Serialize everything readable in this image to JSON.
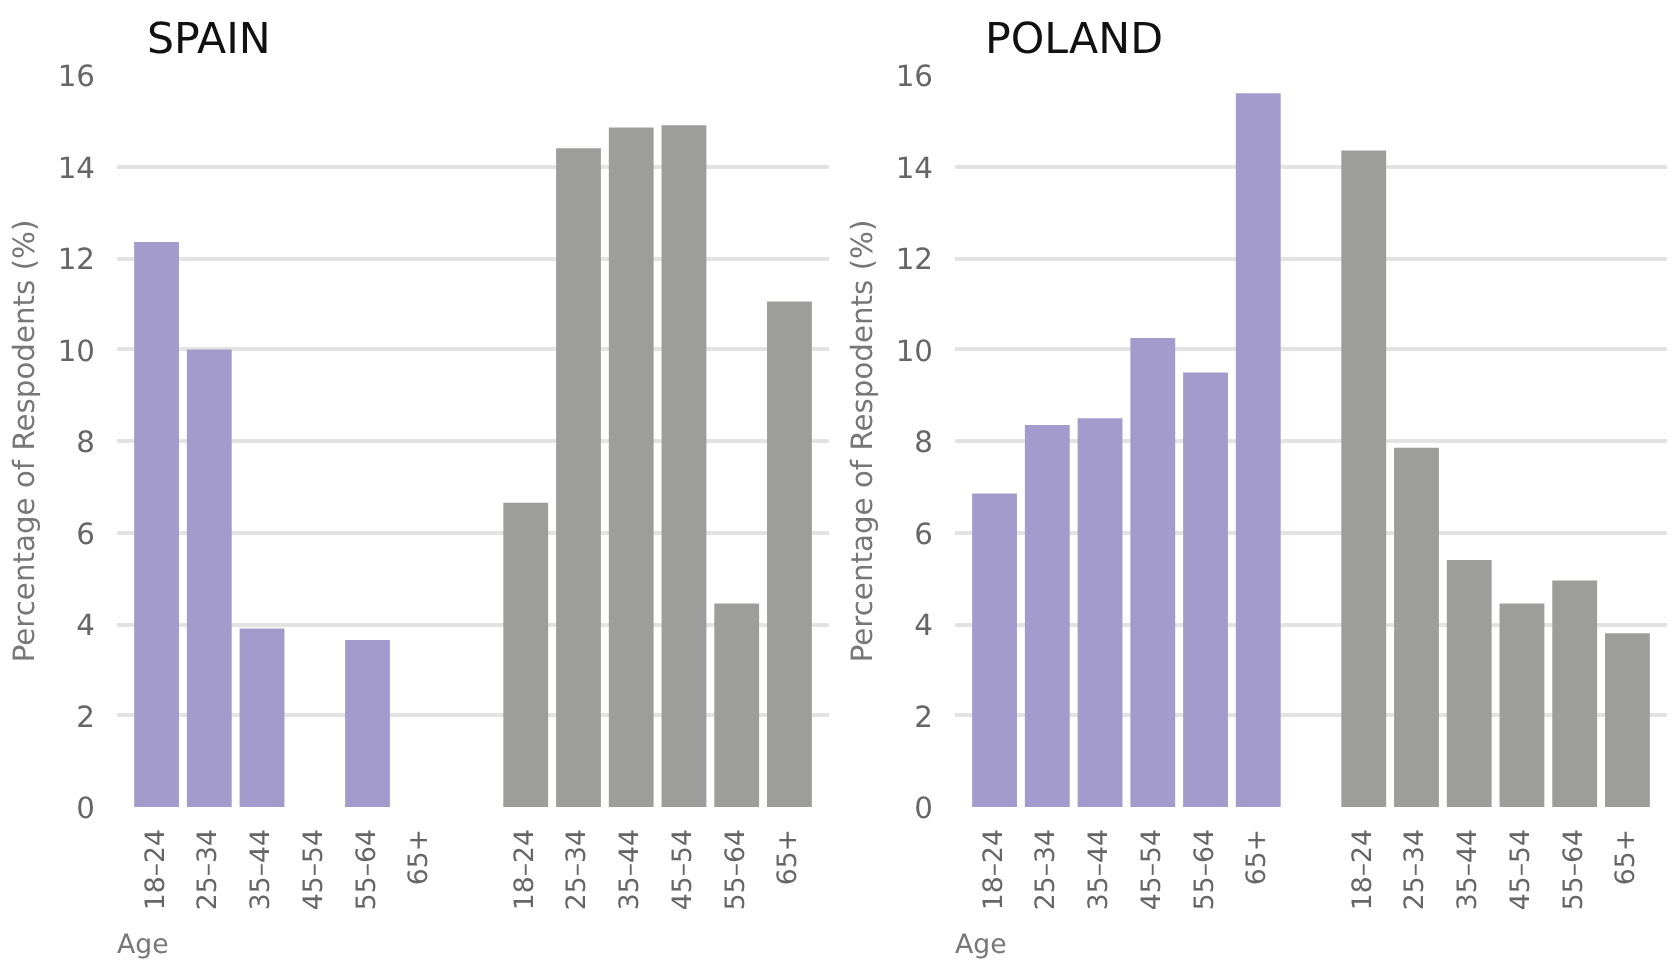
{
  "chart_data": [
    {
      "type": "bar",
      "title": "SPAIN",
      "xlabel": "Age",
      "ylabel": "Percentage of Respodents (%)",
      "categories": [
        "18–24",
        "25–34",
        "35–44",
        "45–54",
        "55–64",
        "65+",
        null,
        "18–24",
        "25–34",
        "35–44",
        "45–54",
        "55–64",
        "65+"
      ],
      "series": [
        {
          "color": "#a29bcb",
          "values": [
            12.35,
            10.0,
            3.9,
            null,
            3.65,
            null,
            null,
            null,
            null,
            null,
            null,
            null,
            null
          ]
        },
        {
          "color": "#9d9d9c",
          "values": [
            null,
            null,
            null,
            null,
            null,
            null,
            null,
            6.65,
            14.4,
            14.85,
            14.9,
            4.45,
            11.05
          ]
        }
      ],
      "ylim": [
        0,
        16
      ],
      "yticks": [
        0,
        2,
        4,
        6,
        8,
        10,
        12,
        14,
        16
      ],
      "grid": "y"
    },
    {
      "type": "bar",
      "title": "POLAND",
      "xlabel": "Age",
      "ylabel": "Percentage of Respodents (%)",
      "categories": [
        "18–24",
        "25–34",
        "35–44",
        "45–54",
        "55–64",
        "65+",
        null,
        "18–24",
        "25–34",
        "35–44",
        "45–54",
        "55–64",
        "65+"
      ],
      "series": [
        {
          "color": "#a29bcb",
          "values": [
            6.85,
            8.35,
            8.5,
            10.25,
            9.5,
            15.6,
            null,
            null,
            null,
            null,
            null,
            null,
            null
          ]
        },
        {
          "color": "#9d9d9c",
          "values": [
            null,
            null,
            null,
            null,
            null,
            null,
            null,
            14.35,
            7.85,
            5.4,
            4.45,
            4.95,
            3.8
          ]
        }
      ],
      "ylim": [
        0,
        16
      ],
      "yticks": [
        0,
        2,
        4,
        6,
        8,
        10,
        12,
        14,
        16
      ],
      "grid": "y"
    }
  ]
}
